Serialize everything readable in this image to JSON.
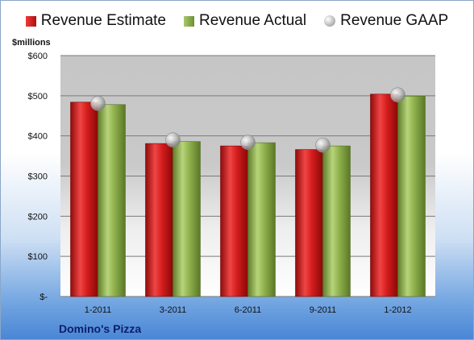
{
  "chart_data": {
    "type": "bar",
    "title": "",
    "unit_label": "$millions",
    "categories": [
      "1-2011",
      "3-2011",
      "6-2011",
      "9-2011",
      "1-2012"
    ],
    "series": [
      {
        "name": "Revenue Estimate",
        "kind": "bar",
        "color": "#c8191b",
        "values": [
          484,
          381,
          375,
          366,
          504
        ]
      },
      {
        "name": "Revenue Actual",
        "kind": "bar",
        "color": "#8fb04d",
        "values": [
          478,
          386,
          383,
          375,
          499
        ]
      },
      {
        "name": "Revenue GAAP",
        "kind": "marker",
        "color": "#bdbdbd",
        "values": [
          481,
          390,
          384,
          377,
          502
        ]
      }
    ],
    "yticks": [
      "$-",
      "$100",
      "$200",
      "$300",
      "$400",
      "$500",
      "$600"
    ],
    "ylim": [
      0,
      600
    ],
    "grid": true,
    "legend_position": "top"
  },
  "footer": {
    "company": "Domino's Pizza"
  }
}
